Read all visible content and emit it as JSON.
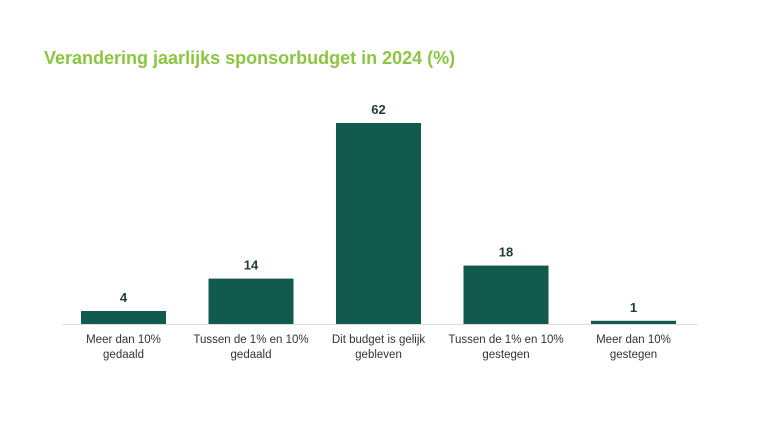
{
  "chart_data": {
    "type": "bar",
    "title": "Verandering jaarlijks sponsorbudget in 2024 (%)",
    "categories": [
      [
        "Meer dan 10%",
        "gedaald"
      ],
      [
        "Tussen de 1% en 10%",
        "gedaald"
      ],
      [
        "Dit budget is gelijk",
        "gebleven"
      ],
      [
        "Tussen de 1% en 10%",
        "gestegen"
      ],
      [
        "Meer dan 10%",
        "gestegen"
      ]
    ],
    "values": [
      4,
      14,
      62,
      18,
      1
    ],
    "xlabel": "",
    "ylabel": "",
    "ylim": [
      0,
      62
    ],
    "grid": false,
    "legend": "none",
    "colors": {
      "title": "#8cc63f",
      "bar": "#135a4e"
    }
  }
}
